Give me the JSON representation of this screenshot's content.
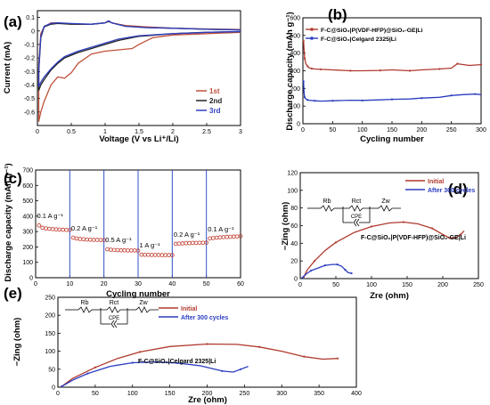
{
  "chart_data": [
    {
      "type": "line",
      "panel_label": "(a)",
      "xlabel": "Voltage (V vs Li⁺/Li)",
      "ylabel": "Current (mA)",
      "xlim": [
        0,
        3
      ],
      "ylim": [
        -0.7,
        0.15
      ],
      "xticks": [
        0,
        0.5,
        1,
        1.5,
        2,
        2.5,
        3
      ],
      "xtick_labels": [
        "0",
        "0.5",
        "1",
        "1.5",
        "2",
        "2.5",
        "3"
      ],
      "yticks": [
        -0.6,
        -0.5,
        -0.4,
        -0.3,
        -0.2,
        -0.1,
        0,
        0.1
      ],
      "ytick_labels": [
        "-0.6",
        "-0.5",
        "-0.4",
        "-0.3",
        "-0.2",
        "-0.1",
        "0",
        "0.1"
      ],
      "legend_position": "bottom-right",
      "series": [
        {
          "name": "1st",
          "color": "#c0503a",
          "x": [
            3.0,
            2.5,
            2.0,
            1.7,
            1.5,
            1.4,
            1.2,
            1.0,
            0.8,
            0.6,
            0.5,
            0.4,
            0.3,
            0.2,
            0.1,
            0.05,
            0.02,
            0.02,
            0.05,
            0.1,
            0.2,
            0.3,
            0.4,
            0.6,
            0.8,
            1.0,
            1.05,
            1.1,
            1.3,
            1.6,
            2.0,
            2.5,
            3.0
          ],
          "y": [
            -0.01,
            -0.02,
            -0.03,
            -0.05,
            -0.1,
            -0.13,
            -0.14,
            -0.15,
            -0.17,
            -0.24,
            -0.31,
            -0.35,
            -0.34,
            -0.4,
            -0.52,
            -0.6,
            -0.67,
            -0.25,
            -0.02,
            0.03,
            0.06,
            0.06,
            0.055,
            0.05,
            0.05,
            0.06,
            0.075,
            0.06,
            0.04,
            0.03,
            0.02,
            0.015,
            0.01
          ]
        },
        {
          "name": "2nd",
          "color": "#222222",
          "x": [
            3.0,
            2.5,
            2.0,
            1.5,
            1.2,
            1.0,
            0.8,
            0.6,
            0.4,
            0.3,
            0.2,
            0.1,
            0.05,
            0.02,
            0.02,
            0.05,
            0.1,
            0.2,
            0.3,
            0.5,
            0.8,
            1.0,
            1.05,
            1.1,
            1.3,
            1.6,
            2.0,
            2.5,
            3.0
          ],
          "y": [
            -0.005,
            -0.01,
            -0.02,
            -0.04,
            -0.07,
            -0.1,
            -0.13,
            -0.16,
            -0.2,
            -0.24,
            -0.29,
            -0.36,
            -0.4,
            -0.44,
            -0.3,
            -0.05,
            0.03,
            0.05,
            0.055,
            0.05,
            0.05,
            0.06,
            0.07,
            0.06,
            0.035,
            0.025,
            0.02,
            0.012,
            0.008
          ]
        },
        {
          "name": "3rd",
          "color": "#2f3fbf",
          "x": [
            3.0,
            2.5,
            2.0,
            1.5,
            1.2,
            1.0,
            0.8,
            0.6,
            0.4,
            0.3,
            0.2,
            0.1,
            0.05,
            0.02,
            0.02,
            0.05,
            0.1,
            0.2,
            0.3,
            0.5,
            0.8,
            1.0,
            1.05,
            1.1,
            1.3,
            1.6,
            2.0,
            2.5,
            3.0
          ],
          "y": [
            -0.005,
            -0.01,
            -0.02,
            -0.035,
            -0.06,
            -0.09,
            -0.12,
            -0.15,
            -0.19,
            -0.23,
            -0.28,
            -0.34,
            -0.38,
            -0.41,
            -0.28,
            -0.04,
            0.035,
            0.055,
            0.06,
            0.055,
            0.05,
            0.06,
            0.075,
            0.06,
            0.035,
            0.025,
            0.02,
            0.012,
            0.008
          ]
        }
      ]
    },
    {
      "type": "line",
      "panel_label": "(b)",
      "xlabel": "Cycling number",
      "ylabel": "Discharge capacity (mAh g⁻¹)",
      "xlim": [
        0,
        300
      ],
      "ylim": [
        0,
        600
      ],
      "xticks": [
        0,
        50,
        100,
        150,
        200,
        250,
        300
      ],
      "xtick_labels": [
        "0",
        "50",
        "100",
        "150",
        "200",
        "250",
        "300"
      ],
      "yticks": [
        0,
        100,
        200,
        300,
        400,
        500,
        600
      ],
      "ytick_labels": [
        "0",
        "100",
        "200",
        "300",
        "400",
        "500",
        "600"
      ],
      "legend_position": "top",
      "series": [
        {
          "name": "F-C@SiO₂|P(VDF-HFP)@SiO₂-GE|Li",
          "color": "#b03a2e",
          "x": [
            1,
            2,
            3,
            5,
            8,
            10,
            15,
            20,
            30,
            50,
            80,
            100,
            130,
            150,
            180,
            200,
            230,
            250,
            260,
            280,
            300
          ],
          "y": [
            470,
            420,
            370,
            340,
            325,
            318,
            312,
            310,
            308,
            305,
            300,
            300,
            302,
            305,
            300,
            305,
            310,
            315,
            340,
            330,
            335
          ]
        },
        {
          "name": "F-C@SiO₂|Celgard 2325|Li",
          "color": "#2b3dbf",
          "x": [
            1,
            2,
            3,
            5,
            8,
            10,
            20,
            30,
            50,
            80,
            100,
            130,
            150,
            180,
            200,
            230,
            250,
            270,
            290,
            300
          ],
          "y": [
            240,
            175,
            150,
            140,
            135,
            133,
            130,
            128,
            130,
            133,
            132,
            135,
            138,
            140,
            145,
            150,
            160,
            165,
            168,
            165
          ]
        }
      ]
    },
    {
      "type": "scatter",
      "panel_label": "(c)",
      "xlabel": "Cycling number",
      "ylabel": "Discharge capacity (mAh g⁻¹)",
      "xlim": [
        0,
        60
      ],
      "ylim": [
        0,
        700
      ],
      "xticks": [
        0,
        10,
        20,
        30,
        40,
        50,
        60
      ],
      "xtick_labels": [
        "0",
        "10",
        "20",
        "30",
        "40",
        "50",
        "60"
      ],
      "yticks": [
        0,
        100,
        200,
        300,
        400,
        500,
        600,
        700
      ],
      "ytick_labels": [
        "0",
        "100",
        "200",
        "300",
        "400",
        "500",
        "600",
        "700"
      ],
      "dividers": [
        10,
        20,
        30,
        40,
        50
      ],
      "color": "#c0392b",
      "segments": [
        {
          "label": "0.1 A g⁻¹",
          "x_start": 1,
          "x_end": 10,
          "values": [
            340,
            325,
            320,
            318,
            316,
            314,
            313,
            312,
            311,
            310
          ]
        },
        {
          "label": "0.2 A g⁻¹",
          "x_start": 11,
          "x_end": 20,
          "values": [
            260,
            255,
            252,
            250,
            248,
            247,
            246,
            246,
            245,
            245
          ]
        },
        {
          "label": "0.5 A g⁻¹",
          "x_start": 21,
          "x_end": 30,
          "values": [
            185,
            182,
            180,
            179,
            178,
            178,
            177,
            177,
            177,
            176
          ]
        },
        {
          "label": "1 A g⁻¹",
          "x_start": 31,
          "x_end": 40,
          "values": [
            150,
            149,
            149,
            148,
            148,
            148,
            147,
            147,
            147,
            147
          ]
        },
        {
          "label": "0.2 A g⁻¹",
          "x_start": 41,
          "x_end": 50,
          "values": [
            220,
            222,
            223,
            224,
            225,
            226,
            226,
            227,
            227,
            228
          ]
        },
        {
          "label": "0.1 A g⁻¹",
          "x_start": 51,
          "x_end": 60,
          "values": [
            255,
            258,
            260,
            262,
            264,
            265,
            266,
            267,
            268,
            270
          ]
        }
      ]
    },
    {
      "type": "line",
      "panel_label": "(d)",
      "xlabel": "Zre (ohm)",
      "ylabel": "−Zing (ohm)",
      "xlim": [
        0,
        250
      ],
      "ylim": [
        0,
        120
      ],
      "xticks": [
        0,
        50,
        100,
        150,
        200,
        250
      ],
      "xtick_labels": [
        "0",
        "50",
        "100",
        "150",
        "200",
        "250"
      ],
      "yticks": [
        0,
        20,
        40,
        60,
        80,
        100,
        120
      ],
      "ytick_labels": [
        "0",
        "20",
        "40",
        "60",
        "80",
        "100",
        "120"
      ],
      "annotation": "F-C@SiO₂|P(VDF-HFP)@SiO₂-GE|Li",
      "circuit_labels": {
        "rb": "Rb",
        "rct": "Rct",
        "zw": "Zw",
        "cpe": "CPE"
      },
      "legend_position": "top-right",
      "series": [
        {
          "name": "Initial",
          "color": "#b03a2e",
          "x": [
            5,
            10,
            20,
            35,
            50,
            75,
            100,
            125,
            145,
            165,
            185,
            200,
            210,
            218,
            225,
            230
          ],
          "y": [
            2,
            10,
            20,
            32,
            41,
            52,
            59,
            63,
            64,
            62,
            57,
            50,
            46,
            46,
            50,
            54
          ]
        },
        {
          "name": "After 300 cycles",
          "color": "#2b3dbf",
          "x": [
            3,
            8,
            15,
            25,
            35,
            45,
            52,
            58,
            63,
            67,
            72
          ],
          "y": [
            1,
            5,
            9,
            12,
            15,
            16,
            16,
            14,
            10,
            7,
            6
          ]
        }
      ]
    },
    {
      "type": "line",
      "panel_label": "(e)",
      "xlabel": "Zre (ohm)",
      "ylabel": "−Zing (ohm)",
      "xlim": [
        0,
        400
      ],
      "ylim": [
        0,
        250
      ],
      "xticks": [
        0,
        50,
        100,
        150,
        200,
        250,
        300,
        350,
        400
      ],
      "xtick_labels": [
        "0",
        "50",
        "100",
        "150",
        "200",
        "250",
        "300",
        "350",
        "400"
      ],
      "yticks": [
        0,
        50,
        100,
        150,
        200,
        250
      ],
      "ytick_labels": [
        "0",
        "50",
        "100",
        "150",
        "200",
        "250"
      ],
      "annotation": "F-C@SiO₂|Celgard 2325|Li",
      "circuit_labels": {
        "rb": "Rb",
        "rct": "Rct",
        "zw": "Zw",
        "cpe": "CPE"
      },
      "legend_position": "top-right",
      "series": [
        {
          "name": "Initial",
          "color": "#b03a2e",
          "x": [
            5,
            20,
            50,
            80,
            110,
            150,
            200,
            240,
            270,
            300,
            330,
            355,
            375
          ],
          "y": [
            2,
            25,
            55,
            80,
            98,
            113,
            120,
            119,
            112,
            100,
            85,
            78,
            80
          ]
        },
        {
          "name": "After 300 cycles",
          "color": "#2b3dbf",
          "x": [
            5,
            20,
            40,
            70,
            100,
            130,
            160,
            190,
            220,
            235,
            245,
            255
          ],
          "y": [
            2,
            20,
            38,
            58,
            68,
            70,
            67,
            60,
            45,
            42,
            50,
            58
          ]
        }
      ]
    }
  ]
}
